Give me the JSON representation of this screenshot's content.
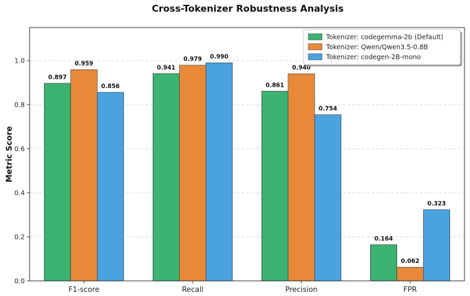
{
  "chart_data": {
    "type": "bar",
    "title": "Cross-Tokenizer Robustness Analysis",
    "xlabel": "",
    "ylabel": "Metric Score",
    "categories": [
      "F1-score",
      "Recall",
      "Precision",
      "FPR"
    ],
    "ylim": [
      0,
      1.15
    ],
    "yticks": [
      "0.0",
      "0.2",
      "0.4",
      "0.6",
      "0.8",
      "1.0"
    ],
    "grid": "y-dashed",
    "legend_position": "top-right",
    "series": [
      {
        "name": "Tokenizer: codegemma-2b (Default)",
        "color": "#3cb371",
        "values": [
          0.897,
          0.941,
          0.861,
          0.164
        ],
        "labels": [
          "0.897",
          "0.941",
          "0.861",
          "0.164"
        ]
      },
      {
        "name": "Tokenizer: Qwen/Qwen3.5-0.8B",
        "color": "#e8893a",
        "values": [
          0.959,
          0.979,
          0.94,
          0.062
        ],
        "labels": [
          "0.959",
          "0.979",
          "0.940",
          "0.062"
        ]
      },
      {
        "name": "Tokenizer: codegen-2B-mono",
        "color": "#4aa3df",
        "values": [
          0.856,
          0.99,
          0.754,
          0.323
        ],
        "labels": [
          "0.856",
          "0.990",
          "0.754",
          "0.323"
        ]
      }
    ]
  }
}
